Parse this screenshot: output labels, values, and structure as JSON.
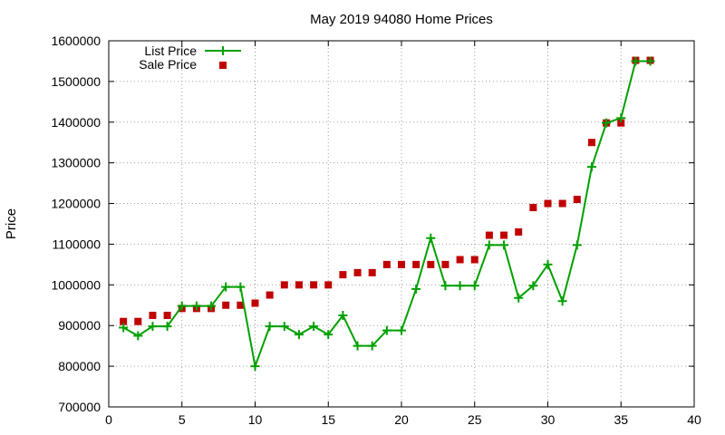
{
  "chart_data": {
    "type": "line",
    "title": "May 2019 94080 Home Prices",
    "xlabel": "",
    "ylabel": "Price",
    "xlim": [
      0,
      40
    ],
    "ylim": [
      700000,
      1600000
    ],
    "xticks": [
      0,
      5,
      10,
      15,
      20,
      25,
      30,
      35,
      40
    ],
    "yticks": [
      700000,
      800000,
      900000,
      1000000,
      1100000,
      1200000,
      1300000,
      1400000,
      1500000,
      1600000
    ],
    "grid": true,
    "legend_position": "top-left",
    "series": [
      {
        "name": "List Price",
        "style": "line-with-plus-markers",
        "color": "#00a000",
        "x": [
          1,
          2,
          3,
          4,
          5,
          6,
          7,
          8,
          9,
          10,
          11,
          12,
          13,
          14,
          15,
          16,
          17,
          18,
          19,
          20,
          21,
          22,
          23,
          24,
          25,
          26,
          27,
          28,
          29,
          30,
          31,
          32,
          33,
          34,
          35,
          36,
          37
        ],
        "y": [
          895000,
          875000,
          898000,
          898000,
          948000,
          948000,
          948000,
          995000,
          995000,
          800000,
          898000,
          898000,
          878000,
          898000,
          878000,
          925000,
          850000,
          850000,
          888000,
          888000,
          990000,
          1115000,
          998000,
          998000,
          998000,
          1098000,
          1098000,
          968000,
          998000,
          1050000,
          960000,
          1098000,
          1290000,
          1398000,
          1410000,
          1550000,
          1550000
        ]
      },
      {
        "name": "Sale Price",
        "style": "square-markers",
        "color": "#c00000",
        "x": [
          1,
          2,
          3,
          4,
          5,
          6,
          7,
          8,
          9,
          10,
          11,
          12,
          13,
          14,
          15,
          16,
          17,
          18,
          19,
          20,
          21,
          22,
          23,
          24,
          25,
          26,
          27,
          28,
          29,
          30,
          31,
          32,
          33,
          34,
          35,
          36,
          37
        ],
        "y": [
          910000,
          910000,
          925000,
          925000,
          942000,
          942000,
          942000,
          950000,
          950000,
          955000,
          975000,
          1000000,
          1000000,
          1000000,
          1000000,
          1025000,
          1030000,
          1030000,
          1050000,
          1050000,
          1050000,
          1050000,
          1050000,
          1062000,
          1062000,
          1122000,
          1122000,
          1130000,
          1190000,
          1200000,
          1200000,
          1210000,
          1350000,
          1398000,
          1398000,
          1552000,
          1552000
        ]
      }
    ]
  }
}
